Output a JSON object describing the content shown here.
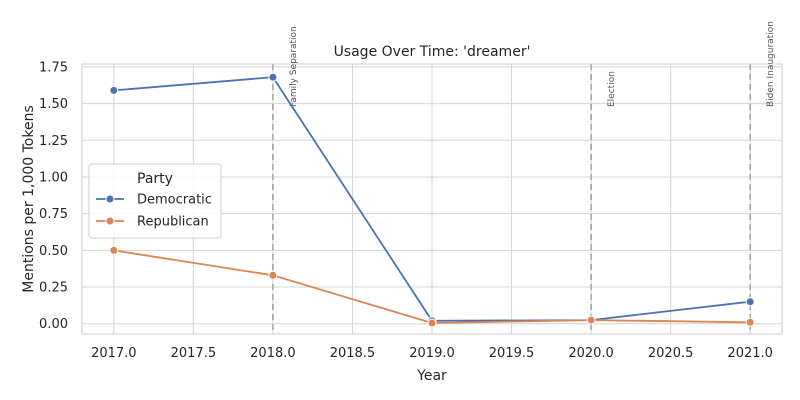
{
  "chart_data": {
    "type": "line",
    "title": "Usage Over Time: 'dreamer'",
    "xlabel": "Year",
    "ylabel": "Mentions per 1,000 Tokens",
    "xlim": [
      2016.8,
      2021.2
    ],
    "ylim": [
      -0.07,
      1.77
    ],
    "x_ticks": [
      2017.0,
      2017.5,
      2018.0,
      2018.5,
      2019.0,
      2019.5,
      2020.0,
      2020.5,
      2021.0
    ],
    "x_tick_labels": [
      "2017.0",
      "2017.5",
      "2018.0",
      "2018.5",
      "2019.0",
      "2019.5",
      "2020.0",
      "2020.5",
      "2021.0"
    ],
    "y_ticks": [
      0.0,
      0.25,
      0.5,
      0.75,
      1.0,
      1.25,
      1.5,
      1.75
    ],
    "y_tick_labels": [
      "0.00",
      "0.25",
      "0.50",
      "0.75",
      "1.00",
      "1.25",
      "1.50",
      "1.75"
    ],
    "grid": true,
    "legend": {
      "title": "Party",
      "placement": "center-left"
    },
    "series": [
      {
        "name": "Democratic",
        "color": "#4c72b0",
        "x": [
          2017,
          2018,
          2019,
          2020,
          2021
        ],
        "y": [
          1.59,
          1.68,
          0.02,
          0.025,
          0.15
        ]
      },
      {
        "name": "Republican",
        "color": "#dd8452",
        "x": [
          2017,
          2018,
          2019,
          2020,
          2021
        ],
        "y": [
          0.5,
          0.33,
          0.005,
          0.025,
          0.01
        ]
      }
    ],
    "events": [
      {
        "x": 2018,
        "label": "Family Separation"
      },
      {
        "x": 2020,
        "label": "Election"
      },
      {
        "x": 2021,
        "label": "Biden Inauguration"
      }
    ]
  }
}
